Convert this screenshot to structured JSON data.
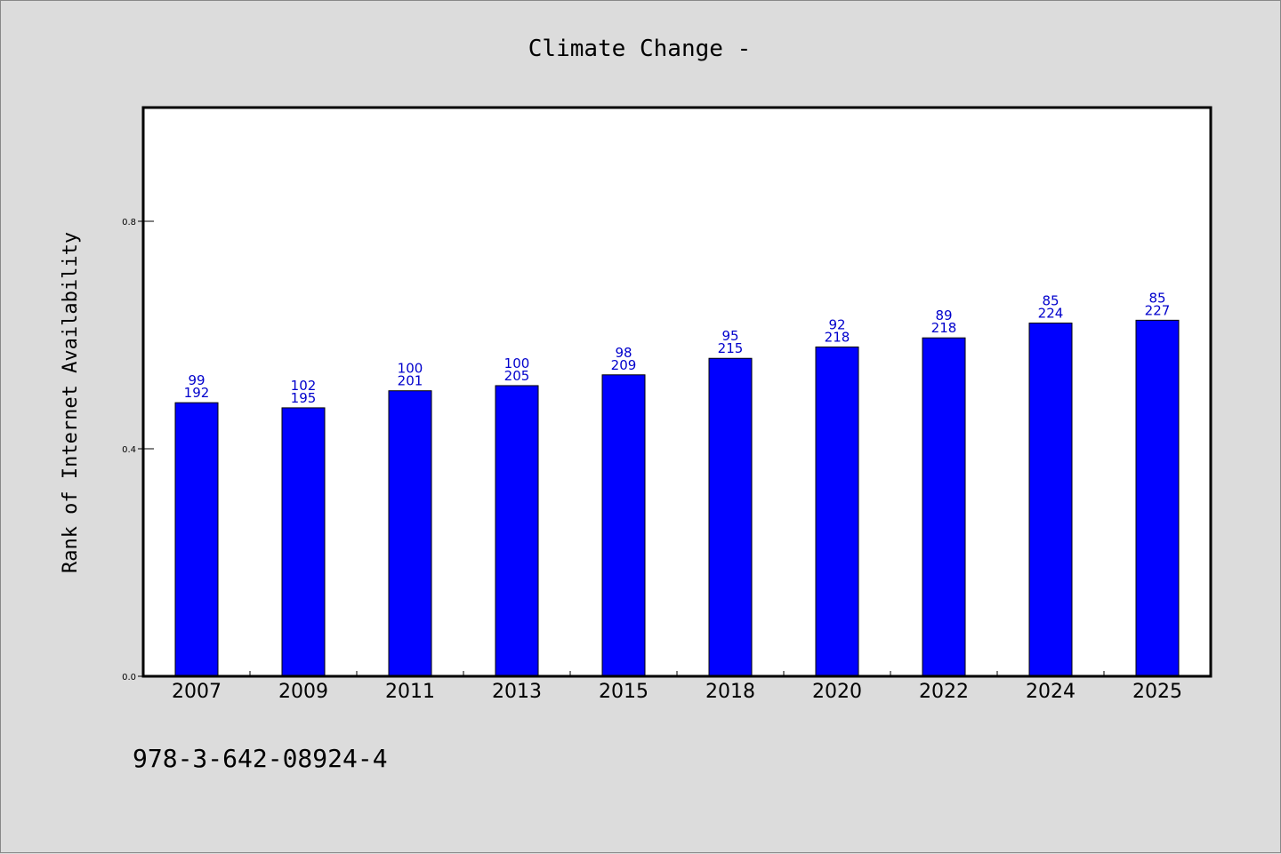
{
  "chart_data": {
    "type": "bar",
    "title": "Climate Change -",
    "xlabel": "",
    "ylabel": "Rank of Internet Availability",
    "categories": [
      "2007",
      "2009",
      "2011",
      "2013",
      "2015",
      "2018",
      "2020",
      "2022",
      "2024",
      "2025"
    ],
    "series": [
      {
        "values": [
          0.481,
          0.472,
          0.502,
          0.511,
          0.53,
          0.559,
          0.579,
          0.595,
          0.621,
          0.626
        ]
      }
    ],
    "data_labels_top": [
      "99",
      "102",
      "100",
      "100",
      "98",
      "95",
      "92",
      "89",
      "85",
      "85"
    ],
    "data_labels_bottom": [
      "192",
      "195",
      "201",
      "205",
      "209",
      "215",
      "218",
      "218",
      "224",
      "227"
    ],
    "ylim": [
      0.0,
      1.0
    ],
    "yticks": [
      0.0,
      0.4,
      0.8
    ],
    "ytick_labels": [
      "0.0",
      "0.4",
      "0.8"
    ],
    "grid": false,
    "bar_color": "#0000ff",
    "label_color": "#0000cc",
    "background_color": "#dcdcdc",
    "plot_background": "#ffffff"
  },
  "footer": {
    "isbn": "978-3-642-08924-4"
  }
}
